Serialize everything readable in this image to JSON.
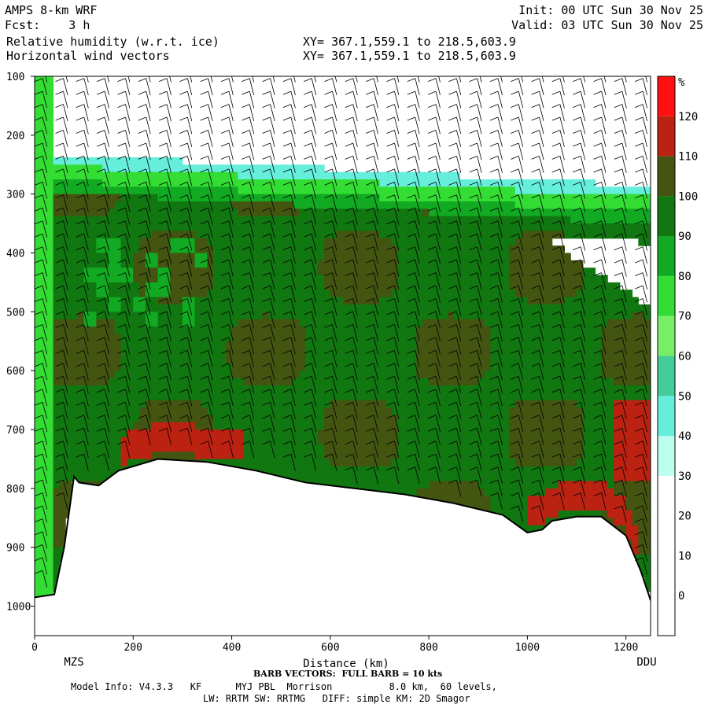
{
  "header": {
    "model": "AMPS 8-km WRF",
    "fcst": "Fcst:    3 h",
    "field1": "Relative humidity (w.r.t. ice)",
    "field2": "Horizontal wind vectors",
    "init": "Init: 00 UTC Sun 30 Nov 25",
    "valid": "Valid: 03 UTC Sun 30 Nov 25",
    "xy1": "XY= 367.1,559.1 to 218.5,603.9",
    "xy2": "XY= 367.1,559.1 to 218.5,603.9"
  },
  "footer": {
    "barb_note": "BARB VECTORS:  FULL BARB = 10 kts",
    "model_info": "Model Info: V4.3.3   KF      MYJ PBL  Morrison          8.0 km,  60 levels,",
    "physics": "LW: RRTM SW: RRTMG   DIFF: simple KM: 2D Smagor"
  },
  "chart_data": {
    "type": "heatmap",
    "title": "Relative humidity (w.r.t. ice)",
    "xlabel": "Distance (km)",
    "ylabel": "",
    "x_ticks": [
      0,
      200,
      400,
      600,
      800,
      1000,
      1200
    ],
    "y_ticks": [
      100,
      200,
      300,
      400,
      500,
      600,
      700,
      800,
      900,
      1000
    ],
    "xlim": [
      0,
      1250
    ],
    "ylim": [
      1050,
      100
    ],
    "y_scale": "linear, inverted",
    "left_endpoint": "MZS",
    "right_endpoint": "DDU",
    "colorbar": {
      "unit": "%",
      "levels": [
        0,
        10,
        20,
        30,
        40,
        50,
        60,
        70,
        80,
        90,
        100,
        110,
        120
      ],
      "colors": [
        "#ffffff",
        "#ffffff",
        "#ffffff",
        "#ffffff",
        "#bbffee",
        "#66eedd",
        "#44cc99",
        "#77ee66",
        "#33dd33",
        "#11aa22",
        "#117711",
        "#445511",
        "#bb2211",
        "#ff1111"
      ]
    },
    "terrain_surface": [
      [
        0,
        985
      ],
      [
        40,
        980
      ],
      [
        60,
        900
      ],
      [
        80,
        780
      ],
      [
        90,
        790
      ],
      [
        130,
        795
      ],
      [
        170,
        770
      ],
      [
        250,
        750
      ],
      [
        350,
        755
      ],
      [
        450,
        770
      ],
      [
        550,
        790
      ],
      [
        650,
        800
      ],
      [
        750,
        810
      ],
      [
        850,
        825
      ],
      [
        950,
        845
      ],
      [
        1000,
        875
      ],
      [
        1030,
        870
      ],
      [
        1050,
        855
      ],
      [
        1100,
        848
      ],
      [
        1150,
        848
      ],
      [
        1200,
        880
      ],
      [
        1230,
        940
      ],
      [
        1250,
        990
      ]
    ],
    "rh_regions": [
      {
        "region": "upper troposphere 100-230 hPa",
        "rh_percent": "below 30"
      },
      {
        "region": "tropopause band ~230-290 hPa",
        "rh_percent": "40-80"
      },
      {
        "region": "mid troposphere 300-750 hPa",
        "rh_percent": "90-110"
      },
      {
        "region": "near-surface patches",
        "rh_percent": "110-120"
      },
      {
        "region": "dry slot 380-520 hPa, 950-1250 km",
        "rh_percent": "below 30"
      }
    ]
  }
}
